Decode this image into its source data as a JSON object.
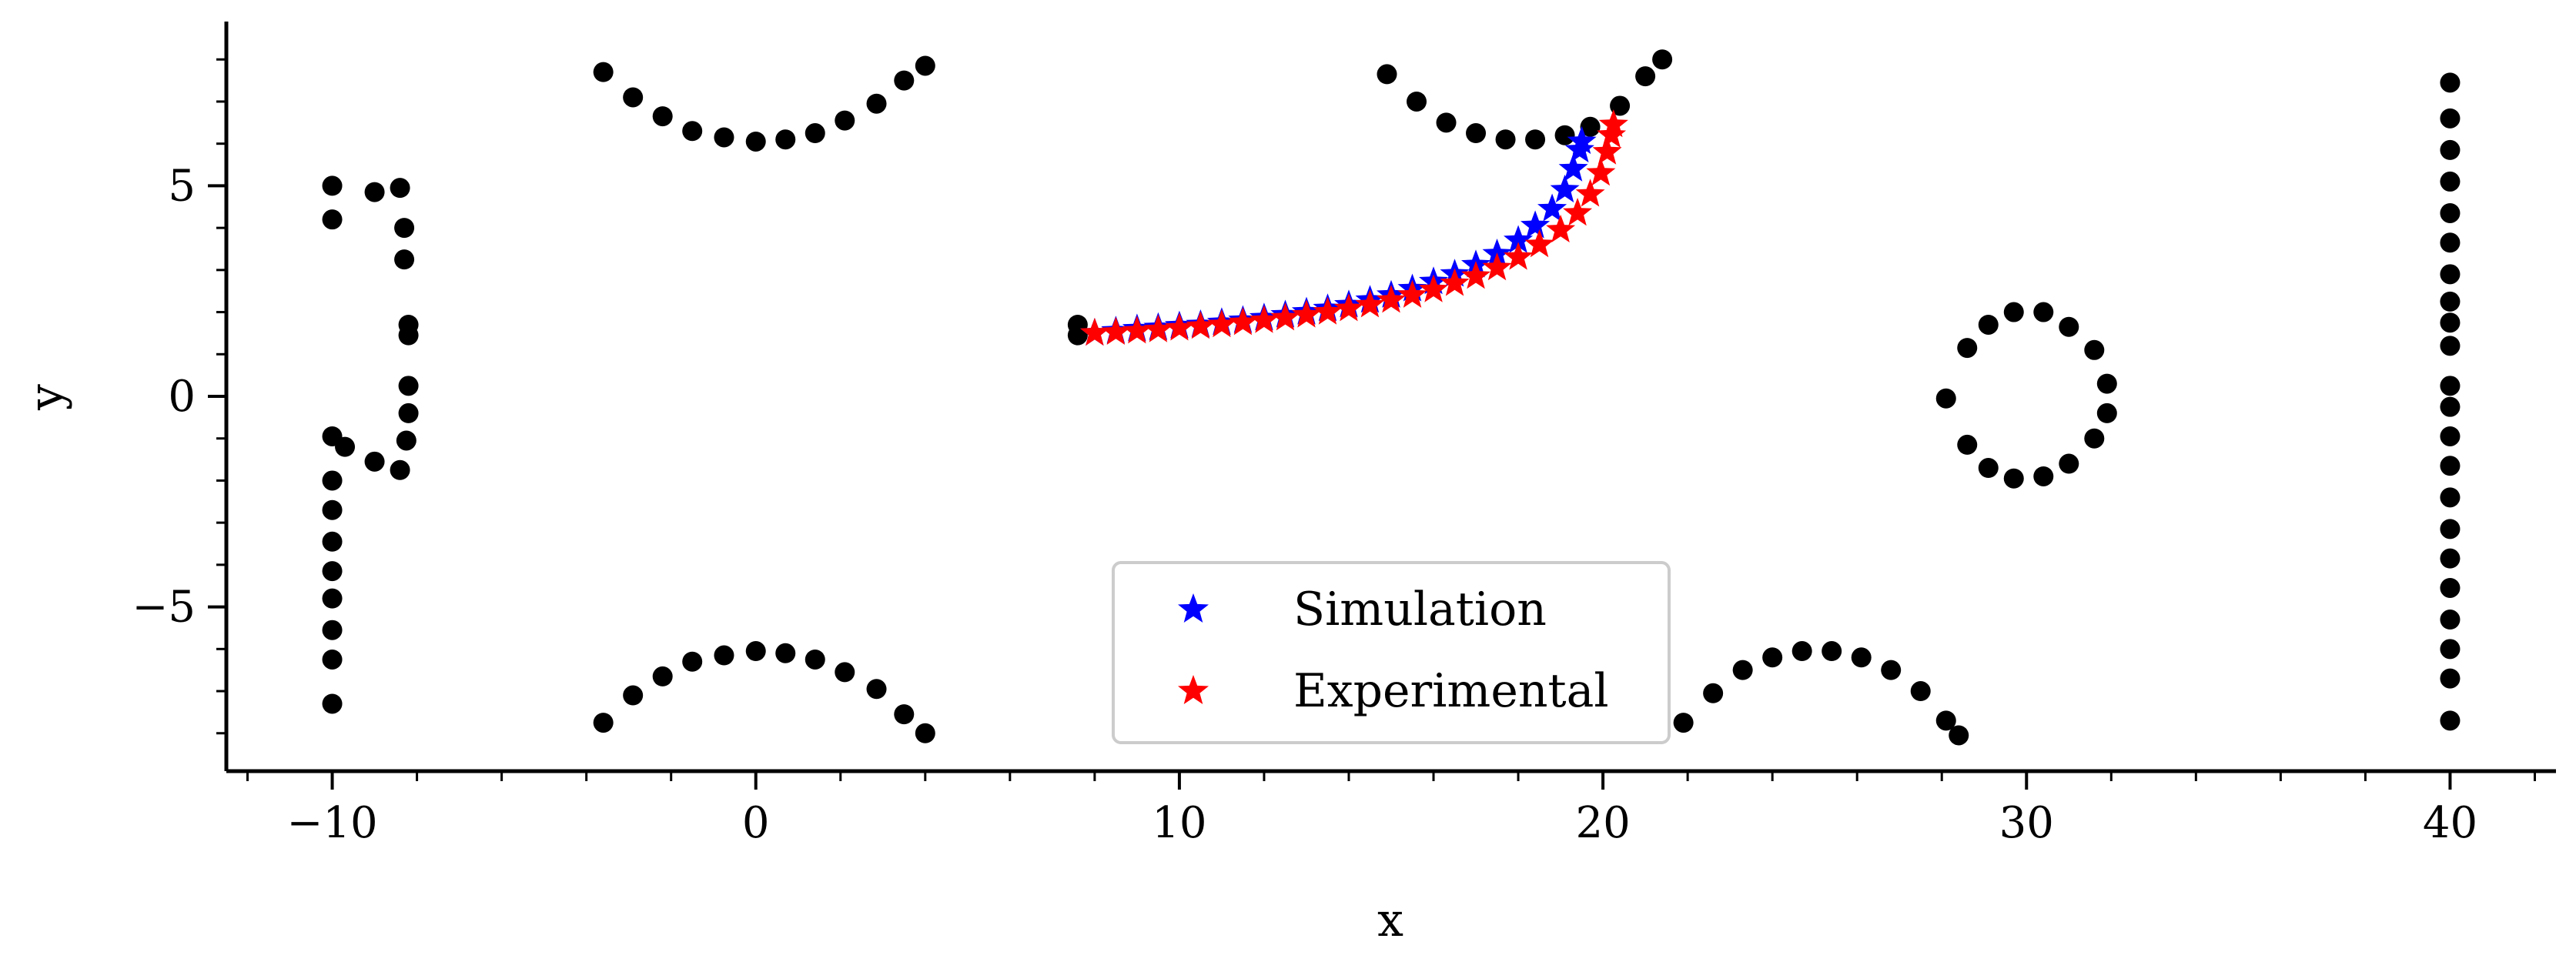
{
  "chart_data": {
    "type": "scatter",
    "title": "",
    "xlabel": "x",
    "ylabel": "y",
    "xlim": [
      -12.5,
      42.5
    ],
    "ylim": [
      -8.9,
      8.9
    ],
    "x_ticks": [
      -10,
      0,
      10,
      20,
      30,
      40
    ],
    "x_tick_labels": [
      "−10",
      "0",
      "10",
      "20",
      "30",
      "40"
    ],
    "y_ticks": [
      -5,
      0,
      5
    ],
    "y_tick_labels": [
      "−5",
      "0",
      "5"
    ],
    "grid": false,
    "legend_position": "bottom-center",
    "series": [
      {
        "role": "obstacles",
        "marker": "circle",
        "color": "#000000",
        "points": [
          [
            -10,
            5
          ],
          [
            -10,
            4.2
          ],
          [
            -9,
            4.85
          ],
          [
            -8.4,
            4.95
          ],
          [
            -8.3,
            4
          ],
          [
            -8.3,
            3.25
          ],
          [
            -8.2,
            1.7
          ],
          [
            -8.2,
            1.45
          ],
          [
            -8.2,
            0.25
          ],
          [
            -8.2,
            -0.4
          ],
          [
            -8.25,
            -1.05
          ],
          [
            -8.4,
            -1.75
          ],
          [
            -9.0,
            -1.55
          ],
          [
            -9.7,
            -1.2
          ],
          [
            -10,
            -0.95
          ],
          [
            -10,
            -2.0
          ],
          [
            -10,
            -2.7
          ],
          [
            -10,
            -3.45
          ],
          [
            -10,
            -4.15
          ],
          [
            -10,
            -4.8
          ],
          [
            -10,
            -5.55
          ],
          [
            -10,
            -6.25
          ],
          [
            -10,
            -7.3
          ],
          [
            -3.6,
            7.7
          ],
          [
            -2.9,
            7.1
          ],
          [
            -2.2,
            6.65
          ],
          [
            -1.5,
            6.3
          ],
          [
            -0.75,
            6.15
          ],
          [
            0,
            6.05
          ],
          [
            0.7,
            6.1
          ],
          [
            1.4,
            6.25
          ],
          [
            2.1,
            6.55
          ],
          [
            2.85,
            6.95
          ],
          [
            3.5,
            7.5
          ],
          [
            4,
            7.85
          ],
          [
            -3.6,
            -7.75
          ],
          [
            -2.9,
            -7.1
          ],
          [
            -2.2,
            -6.65
          ],
          [
            -1.5,
            -6.3
          ],
          [
            -0.75,
            -6.15
          ],
          [
            0,
            -6.05
          ],
          [
            0.7,
            -6.1
          ],
          [
            1.4,
            -6.25
          ],
          [
            2.1,
            -6.55
          ],
          [
            2.85,
            -6.95
          ],
          [
            3.5,
            -7.55
          ],
          [
            4,
            -8.0
          ],
          [
            14.9,
            7.65
          ],
          [
            15.6,
            7.0
          ],
          [
            16.3,
            6.5
          ],
          [
            17.0,
            6.25
          ],
          [
            17.7,
            6.1
          ],
          [
            18.4,
            6.1
          ],
          [
            19.1,
            6.2
          ],
          [
            19.7,
            6.4
          ],
          [
            20.4,
            6.9
          ],
          [
            21.0,
            7.6
          ],
          [
            21.4,
            8.0
          ],
          [
            21.9,
            -7.75
          ],
          [
            22.6,
            -7.05
          ],
          [
            23.3,
            -6.5
          ],
          [
            24.0,
            -6.2
          ],
          [
            24.7,
            -6.05
          ],
          [
            25.4,
            -6.05
          ],
          [
            26.1,
            -6.2
          ],
          [
            26.8,
            -6.5
          ],
          [
            27.5,
            -7.0
          ],
          [
            28.1,
            -7.7
          ],
          [
            28.4,
            -8.05
          ],
          [
            7.6,
            1.7
          ],
          [
            7.6,
            1.45
          ],
          [
            28.1,
            -0.05
          ],
          [
            28.6,
            1.15
          ],
          [
            29.1,
            1.7
          ],
          [
            29.7,
            2.0
          ],
          [
            30.4,
            2.0
          ],
          [
            31.0,
            1.65
          ],
          [
            31.6,
            1.1
          ],
          [
            31.9,
            0.3
          ],
          [
            31.9,
            -0.4
          ],
          [
            31.6,
            -1.0
          ],
          [
            31.0,
            -1.6
          ],
          [
            30.4,
            -1.9
          ],
          [
            29.7,
            -1.95
          ],
          [
            29.1,
            -1.7
          ],
          [
            28.6,
            -1.15
          ],
          [
            40,
            7.45
          ],
          [
            40,
            6.6
          ],
          [
            40,
            5.85
          ],
          [
            40,
            5.1
          ],
          [
            40,
            4.35
          ],
          [
            40,
            3.65
          ],
          [
            40,
            2.9
          ],
          [
            40,
            2.25
          ],
          [
            40,
            1.75
          ],
          [
            40,
            1.2
          ],
          [
            40,
            0.25
          ],
          [
            40,
            -0.25
          ],
          [
            40,
            -0.95
          ],
          [
            40,
            -1.65
          ],
          [
            40,
            -2.4
          ],
          [
            40,
            -3.15
          ],
          [
            40,
            -3.85
          ],
          [
            40,
            -4.55
          ],
          [
            40,
            -5.3
          ],
          [
            40,
            -6.0
          ],
          [
            40,
            -6.7
          ],
          [
            40,
            -7.7
          ]
        ]
      },
      {
        "name": "Simulation",
        "marker": "star",
        "color": "#0000ff",
        "points": [
          [
            8.0,
            1.5
          ],
          [
            8.5,
            1.55
          ],
          [
            9.0,
            1.6
          ],
          [
            9.5,
            1.63
          ],
          [
            10.0,
            1.67
          ],
          [
            10.5,
            1.7
          ],
          [
            11.0,
            1.75
          ],
          [
            11.5,
            1.8
          ],
          [
            12.0,
            1.86
          ],
          [
            12.5,
            1.93
          ],
          [
            13.0,
            2.0
          ],
          [
            13.5,
            2.08
          ],
          [
            14.0,
            2.17
          ],
          [
            14.5,
            2.28
          ],
          [
            15.0,
            2.4
          ],
          [
            15.5,
            2.55
          ],
          [
            16.0,
            2.72
          ],
          [
            16.5,
            2.9
          ],
          [
            17.0,
            3.12
          ],
          [
            17.5,
            3.38
          ],
          [
            18.0,
            3.7
          ],
          [
            18.4,
            4.05
          ],
          [
            18.8,
            4.45
          ],
          [
            19.1,
            4.9
          ],
          [
            19.3,
            5.4
          ],
          [
            19.45,
            5.85
          ],
          [
            19.5,
            6.05
          ]
        ]
      },
      {
        "name": "Experimental",
        "marker": "star",
        "color": "#ff0000",
        "points": [
          [
            8.0,
            1.5
          ],
          [
            8.5,
            1.52
          ],
          [
            9.0,
            1.55
          ],
          [
            9.5,
            1.58
          ],
          [
            10.0,
            1.62
          ],
          [
            10.5,
            1.66
          ],
          [
            11.0,
            1.7
          ],
          [
            11.5,
            1.75
          ],
          [
            12.0,
            1.8
          ],
          [
            12.5,
            1.86
          ],
          [
            13.0,
            1.93
          ],
          [
            13.5,
            2.0
          ],
          [
            14.0,
            2.08
          ],
          [
            14.5,
            2.17
          ],
          [
            15.0,
            2.28
          ],
          [
            15.5,
            2.4
          ],
          [
            16.0,
            2.53
          ],
          [
            16.5,
            2.68
          ],
          [
            17.0,
            2.85
          ],
          [
            17.5,
            3.05
          ],
          [
            18.0,
            3.3
          ],
          [
            18.5,
            3.6
          ],
          [
            19.0,
            3.95
          ],
          [
            19.4,
            4.35
          ],
          [
            19.7,
            4.8
          ],
          [
            19.95,
            5.3
          ],
          [
            20.1,
            5.8
          ],
          [
            20.2,
            6.2
          ],
          [
            20.25,
            6.45
          ]
        ]
      }
    ]
  }
}
